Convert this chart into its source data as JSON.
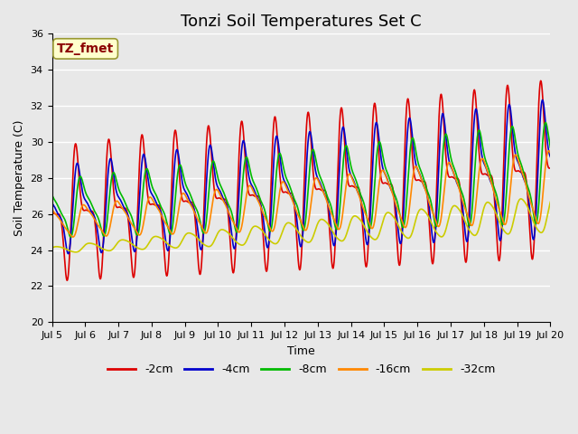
{
  "title": "Tonzi Soil Temperatures Set C",
  "xlabel": "Time",
  "ylabel": "Soil Temperature (C)",
  "ylim": [
    20,
    36
  ],
  "xlim": [
    0,
    360
  ],
  "annotation_text": "TZ_fmet",
  "annotation_color": "#8B0000",
  "annotation_bg": "#FFFFCC",
  "annotation_border": "#999933",
  "bg_color": "#E8E8E8",
  "plot_bg": "#E8E8E8",
  "grid_color": "#FFFFFF",
  "series": [
    {
      "label": "-2cm",
      "color": "#DD0000",
      "lw": 1.2
    },
    {
      "label": "-4cm",
      "color": "#0000CC",
      "lw": 1.2
    },
    {
      "label": "-8cm",
      "color": "#00BB00",
      "lw": 1.2
    },
    {
      "label": "-16cm",
      "color": "#FF8800",
      "lw": 1.2
    },
    {
      "label": "-32cm",
      "color": "#CCCC00",
      "lw": 1.2
    }
  ],
  "tick_labels": [
    "Jul 5",
    "Jul 6",
    "Jul 7",
    "Jul 8",
    "Jul 9",
    "Jul 10",
    "Jul 11",
    "Jul 12",
    "Jul 13",
    "Jul 14",
    "Jul 15",
    "Jul 16",
    "Jul 17",
    "Jul 18",
    "Jul 19",
    "Jul 20"
  ],
  "tick_positions": [
    0,
    24,
    48,
    72,
    96,
    120,
    144,
    168,
    192,
    216,
    240,
    264,
    288,
    312,
    336,
    360
  ],
  "yticks": [
    20,
    22,
    24,
    26,
    28,
    30,
    32,
    34,
    36
  ],
  "title_fontsize": 13,
  "axis_label_fontsize": 9,
  "tick_fontsize": 8,
  "legend_fontsize": 9
}
